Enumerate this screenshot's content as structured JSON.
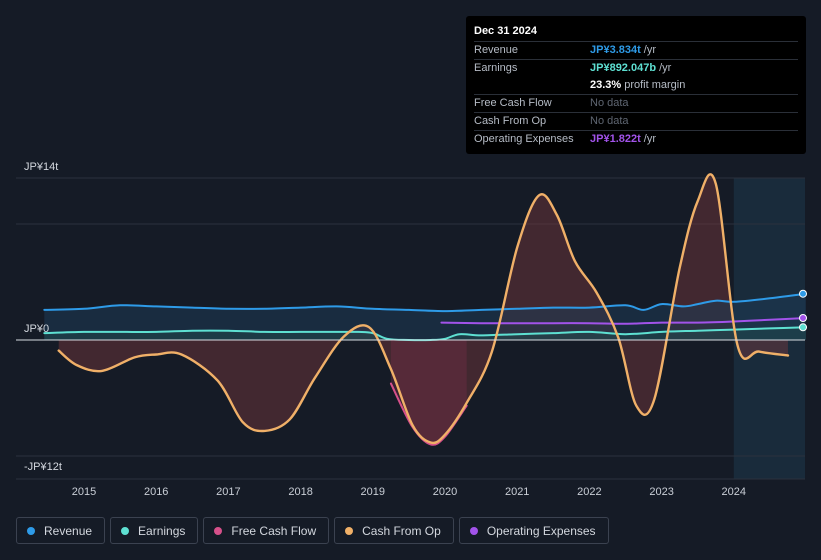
{
  "colors": {
    "revenue": "#2e9be8",
    "earnings": "#5ee0d2",
    "free_cash_flow": "#d6508a",
    "cash_from_op": "#f0b068",
    "operating_expenses": "#a253ea",
    "profit_margin_value": "#ffffff"
  },
  "tooltip": {
    "date": "Dec 31 2024",
    "rows": [
      {
        "label": "Revenue",
        "value": "JP¥3.834t",
        "unit": "/yr"
      },
      {
        "label": "Earnings",
        "value": "JP¥892.047b",
        "unit": "/yr"
      },
      {
        "label": "",
        "value": "23.3%",
        "unit": "profit margin"
      },
      {
        "label": "Free Cash Flow",
        "value": "No data",
        "unit": ""
      },
      {
        "label": "Cash From Op",
        "value": "No data",
        "unit": ""
      },
      {
        "label": "Operating Expenses",
        "value": "JP¥1.822t",
        "unit": "/yr"
      }
    ]
  },
  "legend": [
    {
      "label": "Revenue"
    },
    {
      "label": "Earnings"
    },
    {
      "label": "Free Cash Flow"
    },
    {
      "label": "Cash From Op"
    },
    {
      "label": "Operating Expenses"
    }
  ],
  "chart_data": {
    "type": "line",
    "unit": "JP¥ trillions",
    "y_tick_labels": [
      "JP¥14t",
      "JP¥0",
      "-JP¥12t"
    ],
    "x_tick_labels": [
      "2015",
      "2016",
      "2017",
      "2018",
      "2019",
      "2020",
      "2021",
      "2022",
      "2023",
      "2024"
    ],
    "ylim": [
      -12,
      14
    ],
    "xlim": [
      2014.0,
      2025.0
    ],
    "forecast_start": 2024.0,
    "series": [
      {
        "name": "Revenue",
        "key": "revenue",
        "x": [
          2014.45,
          2015.0,
          2015.5,
          2016.0,
          2016.5,
          2017.0,
          2017.5,
          2018.0,
          2018.5,
          2019.0,
          2019.5,
          2020.0,
          2020.5,
          2021.0,
          2021.5,
          2022.0,
          2022.5,
          2022.75,
          2023.0,
          2023.3,
          2023.5,
          2023.75,
          2024.0,
          2024.5,
          2025.0
        ],
        "y": [
          2.6,
          2.7,
          3.0,
          2.9,
          2.8,
          2.7,
          2.7,
          2.8,
          2.9,
          2.7,
          2.6,
          2.5,
          2.6,
          2.7,
          2.8,
          2.8,
          3.0,
          2.6,
          3.1,
          2.9,
          3.1,
          3.4,
          3.3,
          3.6,
          4.0
        ]
      },
      {
        "name": "Earnings",
        "key": "earnings",
        "x": [
          2014.45,
          2015.0,
          2015.5,
          2016.0,
          2016.5,
          2017.0,
          2017.5,
          2018.0,
          2018.5,
          2018.8,
          2019.0,
          2019.2,
          2019.5,
          2019.8,
          2020.0,
          2020.2,
          2020.5,
          2021.0,
          2021.5,
          2022.0,
          2022.5,
          2023.0,
          2023.5,
          2024.0,
          2024.5,
          2025.0
        ],
        "y": [
          0.6,
          0.7,
          0.7,
          0.7,
          0.8,
          0.8,
          0.7,
          0.7,
          0.7,
          0.7,
          0.6,
          0.1,
          0.0,
          0.0,
          0.1,
          0.5,
          0.4,
          0.5,
          0.6,
          0.7,
          0.5,
          0.7,
          0.8,
          0.9,
          1.0,
          1.1
        ]
      },
      {
        "name": "Free Cash Flow",
        "key": "free_cash_flow",
        "x": [
          2019.25,
          2019.55,
          2019.8,
          2020.0,
          2020.3
        ],
        "y": [
          -4.5,
          -9.0,
          -10.8,
          -10.0,
          -6.8
        ]
      },
      {
        "name": "Cash From Op",
        "key": "cash_from_op",
        "x": [
          2014.65,
          2014.9,
          2015.25,
          2015.7,
          2016.0,
          2016.35,
          2016.85,
          2017.2,
          2017.5,
          2017.85,
          2018.2,
          2018.6,
          2018.95,
          2019.25,
          2019.55,
          2019.8,
          2020.0,
          2020.3,
          2020.65,
          2021.0,
          2021.3,
          2021.55,
          2021.8,
          2022.1,
          2022.4,
          2022.65,
          2022.9,
          2023.25,
          2023.5,
          2023.75,
          2024.05,
          2024.35,
          2024.75
        ],
        "y": [
          -1.1,
          -2.6,
          -3.2,
          -1.8,
          -1.5,
          -1.5,
          -4.2,
          -8.5,
          -9.4,
          -8.2,
          -3.9,
          0.3,
          1.1,
          -3.0,
          -8.8,
          -10.6,
          -9.8,
          -6.5,
          -1.2,
          8.0,
          12.5,
          10.8,
          6.8,
          4.1,
          0.2,
          -6.8,
          -6.1,
          6.2,
          12.0,
          13.5,
          -0.5,
          -1.2,
          -1.6
        ]
      },
      {
        "name": "Operating Expenses",
        "key": "operating_expenses",
        "x": [
          2019.95,
          2020.5,
          2021.0,
          2021.5,
          2022.0,
          2022.5,
          2023.0,
          2023.5,
          2024.0,
          2024.5,
          2025.0
        ],
        "y": [
          1.5,
          1.45,
          1.45,
          1.45,
          1.45,
          1.4,
          1.5,
          1.5,
          1.6,
          1.75,
          1.9
        ]
      }
    ]
  }
}
